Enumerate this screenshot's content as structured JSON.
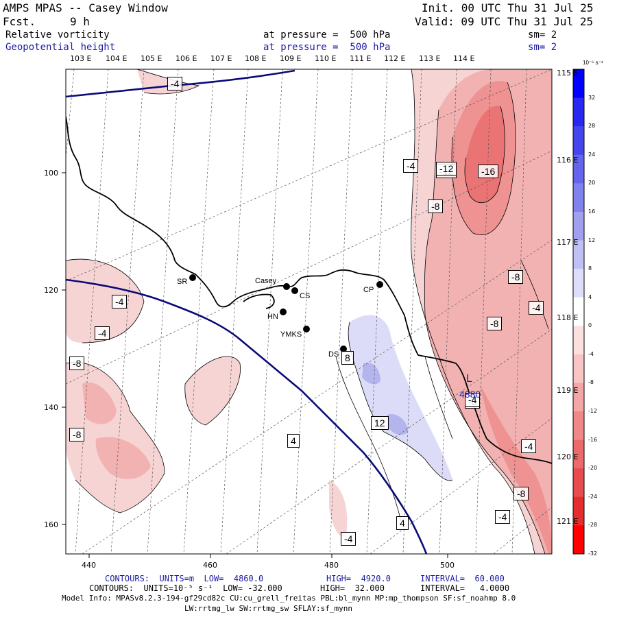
{
  "header": {
    "title": "AMPS MPAS -- Casey Window",
    "fcst_label": "Fcst.",
    "fcst_value": "9 h",
    "init": "Init. 00 UTC Thu 31 Jul 25",
    "valid": "Valid: 09 UTC Thu 31 Jul 25",
    "field1": "Relative vorticity",
    "field1_level": "at pressure =  500 hPa",
    "field1_sm": "sm= 2",
    "field2": "Geopotential height",
    "field2_level": "at pressure =  500 hPa",
    "field2_sm": "sm= 2"
  },
  "colors": {
    "neg_light": "#f6d4d4",
    "neg_mid1": "#f2b2b2",
    "neg_mid2": "#ee9292",
    "neg_strong": "#ea7474",
    "pos_light": "#dcdcf8",
    "pos_mid": "#b4b4ee",
    "height_line": "#0a0a78",
    "coast": "#000000",
    "grid": "#555555"
  },
  "lon_labels": [
    "103 E",
    "104 E",
    "105 E",
    "106 E",
    "107 E",
    "108 E",
    "109 E",
    "110 E",
    "111 E",
    "112 E",
    "113 E",
    "114 E"
  ],
  "lat_labels": [
    "115 E",
    "116 E",
    "117 E",
    "118 E",
    "119 E",
    "120 E",
    "121 E"
  ],
  "x_ticks": [
    "440",
    "460",
    "480",
    "500"
  ],
  "y_ticks": [
    "100",
    "120",
    "140",
    "160"
  ],
  "stations": [
    "SR",
    "Casey",
    "CS",
    "HN",
    "YMKS",
    "DS",
    "CP"
  ],
  "contour_labels": [
    "-4",
    "-4",
    "-4",
    "-4",
    "-8",
    "-8",
    "-8",
    "-12",
    "-16",
    "-8",
    "-4",
    "-8",
    "-8",
    "-4",
    "-4",
    "-8",
    "-4",
    "8",
    "12",
    "-4",
    "4",
    "4",
    "-4",
    "-12"
  ],
  "low_label": "L",
  "low_value": "4880",
  "colorbar": {
    "unit": "10⁻⁵ s⁻¹",
    "labels": [
      "32",
      "28",
      "24",
      "20",
      "16",
      "12",
      "8",
      "4",
      "0",
      "-4",
      "-8",
      "-12",
      "-16",
      "-20",
      "-24",
      "-28",
      "-32"
    ],
    "colors": [
      "#0000ff",
      "#2828f0",
      "#4646ee",
      "#6464ee",
      "#8282ee",
      "#a0a0ee",
      "#c0c0f4",
      "#dedefa",
      "#ffffff",
      "#fce0e0",
      "#f8c4c4",
      "#f4a6a6",
      "#f08888",
      "#ec6a6a",
      "#e84c4c",
      "#e42e2e",
      "#ff0000"
    ]
  },
  "footer": {
    "contours_height_label": "CONTOURS:  UNITS=m  LOW=  4860.0",
    "contours_height_high": "HIGH=  4920.0",
    "contours_height_interval": "INTERVAL=  60.000",
    "contours_vort_label": "CONTOURS:  UNITS=10⁻⁵ s⁻¹  LOW= -32.000",
    "contours_vort_high": "HIGH=  32.000",
    "contours_vort_interval": "INTERVAL=   4.0000",
    "model_info_1": "Model Info: MPASv8.2.3-194-gf29cd82c CU:cu_grell_freitas PBL:bl_mynn MP:mp_thompson SF:sf_noahmp 8.0",
    "model_info_2": "LW:rrtmg_lw SW:rrtmg_sw SFLAY:sf_mynn"
  }
}
